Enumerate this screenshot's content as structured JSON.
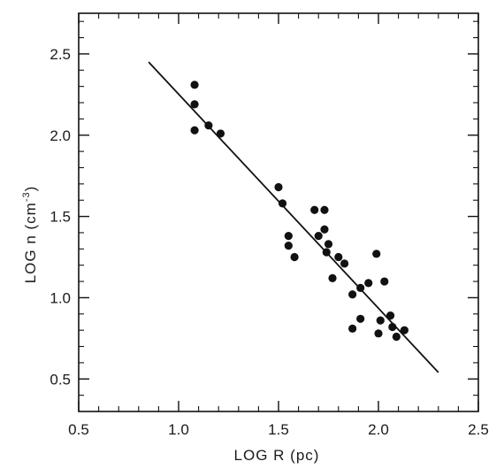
{
  "chart_data": {
    "type": "scatter",
    "title": "",
    "xlabel": "LOG R (pc)",
    "ylabel": {
      "main": "LOG n (cm",
      "sup": "-3",
      "close": ")"
    },
    "xlim": [
      0.5,
      2.5
    ],
    "ylim": [
      0.3,
      2.75
    ],
    "xticks": [
      0.5,
      1.0,
      1.5,
      2.0,
      2.5
    ],
    "xtick_labels": [
      "0.5",
      "1.0",
      "1.5",
      "2.0",
      "2.5"
    ],
    "yticks": [
      0.5,
      1.0,
      1.5,
      2.0,
      2.5
    ],
    "ytick_labels": [
      "0.5",
      "1.0",
      "1.5",
      "2.0",
      "2.5"
    ],
    "grid": false,
    "series": [
      {
        "kind": "points",
        "points": [
          [
            1.08,
            2.31
          ],
          [
            1.08,
            2.19
          ],
          [
            1.08,
            2.03
          ],
          [
            1.15,
            2.06
          ],
          [
            1.21,
            2.01
          ],
          [
            1.5,
            1.68
          ],
          [
            1.52,
            1.58
          ],
          [
            1.55,
            1.38
          ],
          [
            1.55,
            1.32
          ],
          [
            1.58,
            1.25
          ],
          [
            1.68,
            1.54
          ],
          [
            1.7,
            1.38
          ],
          [
            1.73,
            1.54
          ],
          [
            1.73,
            1.42
          ],
          [
            1.74,
            1.28
          ],
          [
            1.75,
            1.33
          ],
          [
            1.77,
            1.12
          ],
          [
            1.8,
            1.25
          ],
          [
            1.83,
            1.21
          ],
          [
            1.87,
            1.02
          ],
          [
            1.87,
            0.81
          ],
          [
            1.91,
            1.06
          ],
          [
            1.91,
            0.87
          ],
          [
            1.95,
            1.09
          ],
          [
            1.99,
            1.27
          ],
          [
            2.0,
            0.78
          ],
          [
            2.01,
            0.86
          ],
          [
            2.03,
            1.1
          ],
          [
            2.06,
            0.89
          ],
          [
            2.07,
            0.82
          ],
          [
            2.09,
            0.76
          ],
          [
            2.13,
            0.8
          ]
        ]
      },
      {
        "kind": "fit-line",
        "points": [
          [
            0.85,
            2.45
          ],
          [
            2.3,
            0.54
          ]
        ]
      }
    ]
  }
}
